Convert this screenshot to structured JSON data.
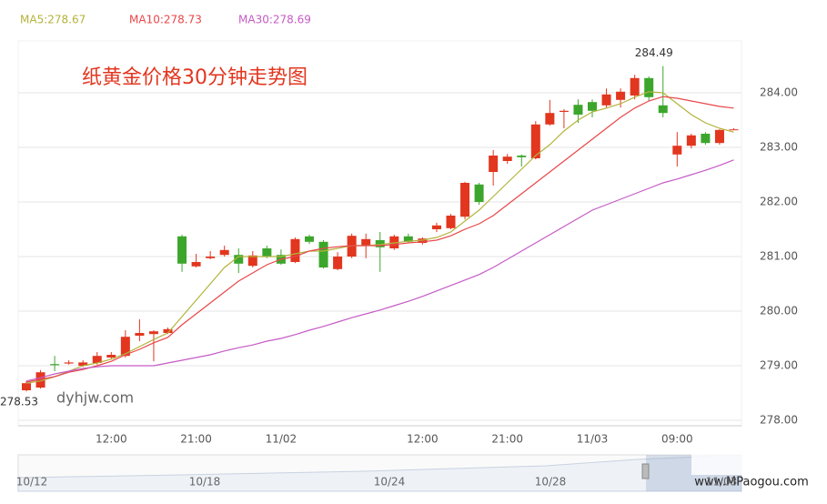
{
  "chart_data": {
    "type": "candlestick",
    "title": "纸黄金价格30分钟走势图",
    "watermark": "dyhjw.com",
    "logo": "www.MPaogou.com",
    "categories": [
      null,
      null,
      null,
      null,
      null,
      null,
      "12:00",
      null,
      null,
      null,
      null,
      null,
      "21:00",
      null,
      null,
      null,
      null,
      null,
      "11/02",
      null,
      null,
      null,
      null,
      null,
      null,
      null,
      null,
      null,
      "12:00",
      null,
      null,
      null,
      null,
      null,
      "21:00",
      null,
      null,
      null,
      null,
      null,
      "11/03",
      null,
      null,
      null,
      null,
      null,
      "09:00",
      null,
      null,
      null,
      null
    ],
    "open": [
      278.55,
      278.6,
      279.03,
      279.04,
      279.0,
      279.05,
      279.15,
      279.18,
      279.55,
      279.58,
      279.6,
      281.37,
      280.82,
      280.97,
      281.03,
      281.03,
      280.83,
      281.15,
      281.03,
      280.9,
      281.37,
      281.27,
      280.77,
      281.0,
      281.2,
      281.3,
      281.15,
      281.37,
      281.25,
      281.5,
      281.52,
      281.73,
      282.32,
      282.55,
      282.75,
      282.85,
      282.8,
      283.42,
      283.65,
      283.78,
      283.83,
      283.77,
      283.87,
      283.95,
      284.27,
      283.77,
      282.87,
      283.03,
      283.25,
      283.08,
      283.33
    ],
    "high": [
      278.72,
      278.92,
      279.18,
      279.1,
      279.1,
      279.25,
      279.25,
      279.65,
      279.85,
      279.65,
      279.7,
      281.4,
      281.05,
      281.1,
      281.2,
      281.15,
      281.1,
      281.2,
      281.13,
      281.35,
      281.4,
      281.3,
      281.08,
      281.42,
      281.42,
      281.45,
      281.4,
      281.42,
      281.35,
      281.62,
      281.78,
      282.37,
      282.35,
      282.95,
      282.88,
      282.87,
      283.48,
      283.87,
      283.7,
      283.88,
      283.88,
      284.08,
      284.08,
      284.33,
      284.3,
      284.49,
      283.28,
      283.25,
      283.28,
      283.33,
      283.35
    ],
    "low": [
      278.53,
      278.58,
      278.9,
      279.02,
      278.98,
      279.02,
      279.12,
      279.15,
      279.45,
      279.08,
      279.58,
      280.72,
      280.8,
      280.95,
      281.0,
      280.7,
      280.8,
      280.97,
      280.85,
      280.88,
      281.23,
      280.78,
      280.75,
      280.97,
      280.97,
      280.72,
      281.12,
      281.25,
      281.22,
      281.45,
      281.5,
      281.68,
      281.95,
      282.3,
      282.7,
      282.65,
      282.78,
      283.4,
      283.35,
      283.45,
      283.55,
      283.73,
      283.73,
      283.88,
      283.85,
      283.55,
      282.65,
      282.98,
      283.05,
      283.05,
      283.32
    ],
    "close": [
      278.68,
      278.88,
      279.01,
      279.06,
      279.06,
      279.18,
      279.2,
      279.53,
      279.6,
      279.63,
      279.67,
      280.87,
      280.9,
      281.0,
      281.12,
      280.87,
      281.02,
      281.0,
      280.87,
      281.32,
      281.27,
      280.8,
      281.0,
      281.38,
      281.32,
      281.17,
      281.37,
      281.27,
      281.33,
      281.57,
      281.75,
      282.35,
      282.0,
      282.85,
      282.83,
      282.82,
      283.42,
      283.63,
      283.67,
      283.6,
      283.67,
      283.97,
      284.02,
      284.27,
      283.92,
      283.63,
      283.03,
      283.22,
      283.08,
      283.32,
      283.33
    ],
    "up_color": "#e2361f",
    "down_color": "#3ca62c",
    "series": [
      {
        "name": "MA5:278.67",
        "color": "#b3b33c",
        "values": [
          278.68,
          278.72,
          278.8,
          278.9,
          279.0,
          279.05,
          279.12,
          279.22,
          279.35,
          279.48,
          279.6,
          279.9,
          280.2,
          280.5,
          280.8,
          281.0,
          281.0,
          281.0,
          281.0,
          281.05,
          281.1,
          281.1,
          281.15,
          281.2,
          281.2,
          281.22,
          281.25,
          281.28,
          281.3,
          281.35,
          281.45,
          281.65,
          281.85,
          282.1,
          282.35,
          282.6,
          282.85,
          283.05,
          283.3,
          283.5,
          283.65,
          283.72,
          283.8,
          283.92,
          284.02,
          284.0,
          283.8,
          283.6,
          283.45,
          283.35,
          283.28
        ]
      },
      {
        "name": "MA10:278.73",
        "color": "#e8474a",
        "values": [
          278.7,
          278.75,
          278.8,
          278.88,
          278.93,
          279.0,
          279.08,
          279.2,
          279.3,
          279.42,
          279.52,
          279.75,
          279.95,
          280.15,
          280.35,
          280.55,
          280.7,
          280.85,
          280.95,
          281.0,
          281.1,
          281.15,
          281.18,
          281.2,
          281.2,
          281.2,
          281.22,
          281.25,
          281.27,
          281.3,
          281.38,
          281.5,
          281.6,
          281.75,
          281.95,
          282.15,
          282.35,
          282.55,
          282.75,
          282.95,
          283.15,
          283.35,
          283.55,
          283.72,
          283.85,
          283.93,
          283.9,
          283.85,
          283.8,
          283.75,
          283.72
        ]
      },
      {
        "name": "MA30:278.69",
        "color": "#c55bc5",
        "values": [
          278.72,
          278.78,
          278.85,
          278.9,
          278.95,
          278.98,
          279.0,
          279.0,
          279.0,
          279.0,
          279.05,
          279.1,
          279.15,
          279.2,
          279.27,
          279.33,
          279.38,
          279.45,
          279.5,
          279.57,
          279.65,
          279.72,
          279.8,
          279.88,
          279.95,
          280.02,
          280.1,
          280.18,
          280.27,
          280.37,
          280.47,
          280.57,
          280.67,
          280.8,
          280.95,
          281.1,
          281.25,
          281.4,
          281.55,
          281.7,
          281.85,
          281.95,
          282.05,
          282.15,
          282.25,
          282.35,
          282.42,
          282.5,
          282.58,
          282.67,
          282.77
        ]
      }
    ],
    "ylim": [
      277.9,
      284.95
    ],
    "yticks": [
      {
        "value": 278,
        "label": "278.00"
      },
      {
        "value": 279,
        "label": "279.00"
      },
      {
        "value": 280,
        "label": "280.00"
      },
      {
        "value": 281,
        "label": "281.00"
      },
      {
        "value": 282,
        "label": "282.00"
      },
      {
        "value": 283,
        "label": "283.00"
      },
      {
        "value": 284,
        "label": "284.00"
      }
    ],
    "grid": true,
    "navigator_labels": [
      "10/12",
      "10/18",
      "10/24",
      "10/28",
      "11/03"
    ]
  }
}
